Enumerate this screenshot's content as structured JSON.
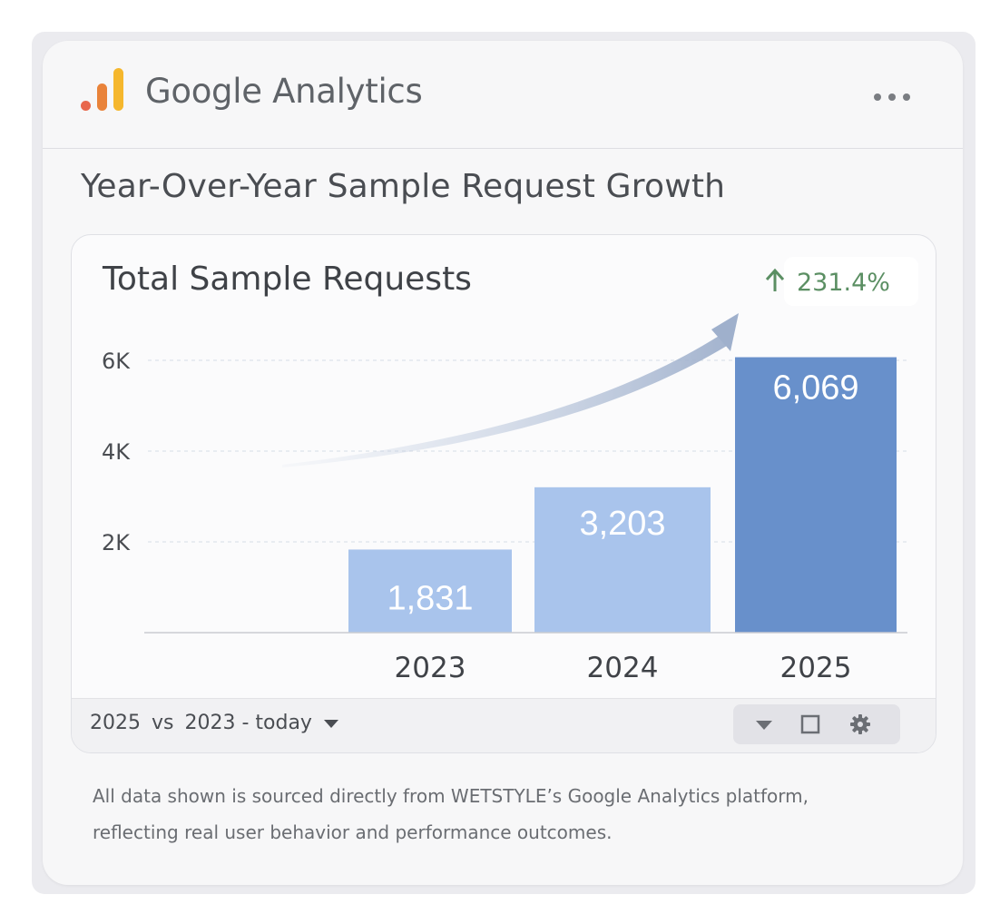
{
  "header": {
    "app_name": "Google Analytics"
  },
  "report": {
    "title": "Year-Over-Year Sample Request Growth"
  },
  "chart_data": {
    "type": "bar",
    "title": "Total Sample Requests",
    "change_label": "231.4%",
    "change_direction": "up",
    "categories": [
      "2023",
      "2024",
      "2025"
    ],
    "values": [
      1831,
      3203,
      6069
    ],
    "value_labels": [
      "1,831",
      "3,203",
      "6,069"
    ],
    "y_ticks": [
      2000,
      4000,
      6000
    ],
    "y_tick_labels": [
      "2K",
      "4K",
      "6K"
    ],
    "ylim": [
      0,
      6000
    ],
    "xlabel": "",
    "ylabel": "",
    "grid": true,
    "bar_colors": [
      "#a9c4ec",
      "#a9c4ec",
      "#6890cb"
    ]
  },
  "controls": {
    "range_a": "2025",
    "range_vs": "vs",
    "range_b": "2023 - today"
  },
  "disclaimer": {
    "line1": "All data shown is sourced directly from WETSTYLE’s Google Analytics platform,",
    "line2": "reflecting real user behavior and performance outcomes."
  },
  "colors": {
    "positive": "#5b8f63",
    "logo_orange": "#e9833a",
    "logo_yellow": "#f5b72d",
    "logo_red": "#e8674c"
  }
}
